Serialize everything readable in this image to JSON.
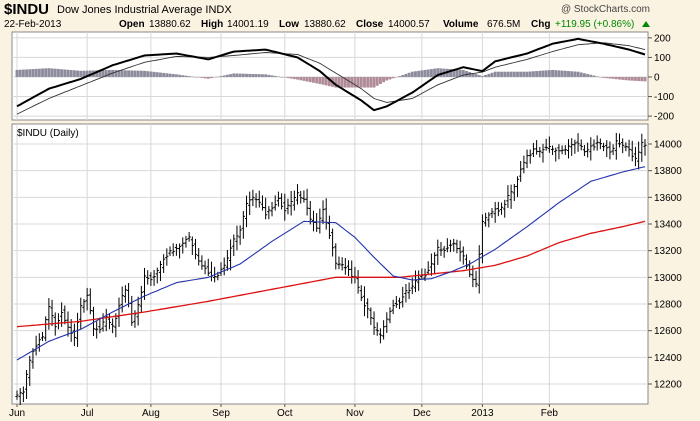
{
  "header": {
    "symbol": "$INDU",
    "name": "Dow Jones Industrial Average",
    "exchange": "INDX",
    "date": "22-Feb-2013",
    "watermark": "@ StockCharts.com",
    "open_label": "Open",
    "open": "13880.62",
    "high_label": "High",
    "high": "14001.19",
    "low_label": "Low",
    "low": "13880.62",
    "close_label": "Close",
    "close": "14000.57",
    "volume_label": "Volume",
    "volume": "676.5M",
    "chg_label": "Chg",
    "chg": "+119.95 (+0.86%)"
  },
  "colors": {
    "background": "#fbf3e2",
    "plot_bg": "#ffffff",
    "grid": "#d8d8d8",
    "ma_short": "#2233aa",
    "ma_long": "#dd1111",
    "hist_pos": "#8c8c9c",
    "hist_neg": "#b08c98",
    "up": "#008800"
  },
  "chart_data": [
    {
      "type": "line",
      "panel": "macd",
      "ylim": [
        -220,
        230
      ],
      "yticks": [
        -200,
        -100,
        0,
        100,
        200
      ],
      "xlabels": [
        "Jun",
        "Jul",
        "Aug",
        "Sep",
        "Oct",
        "Nov",
        "Dec",
        "2013",
        "Feb"
      ],
      "xlabel_index": [
        0,
        22,
        42,
        64,
        84,
        106,
        127,
        146,
        167
      ],
      "macd_knots": [
        [
          0,
          -150
        ],
        [
          10,
          -60
        ],
        [
          20,
          -10
        ],
        [
          30,
          60
        ],
        [
          40,
          110
        ],
        [
          50,
          120
        ],
        [
          60,
          90
        ],
        [
          68,
          130
        ],
        [
          78,
          140
        ],
        [
          88,
          100
        ],
        [
          95,
          30
        ],
        [
          100,
          -40
        ],
        [
          108,
          -120
        ],
        [
          112,
          -170
        ],
        [
          116,
          -150
        ],
        [
          124,
          -80
        ],
        [
          132,
          10
        ],
        [
          140,
          50
        ],
        [
          146,
          30
        ],
        [
          150,
          80
        ],
        [
          160,
          120
        ],
        [
          168,
          170
        ],
        [
          176,
          195
        ],
        [
          184,
          170
        ],
        [
          192,
          140
        ],
        [
          197,
          115
        ]
      ],
      "signal_knots": [
        [
          0,
          -190
        ],
        [
          10,
          -110
        ],
        [
          20,
          -45
        ],
        [
          30,
          20
        ],
        [
          40,
          75
        ],
        [
          50,
          105
        ],
        [
          60,
          100
        ],
        [
          68,
          110
        ],
        [
          78,
          125
        ],
        [
          88,
          115
        ],
        [
          95,
          70
        ],
        [
          100,
          20
        ],
        [
          108,
          -60
        ],
        [
          112,
          -110
        ],
        [
          116,
          -130
        ],
        [
          124,
          -110
        ],
        [
          132,
          -40
        ],
        [
          140,
          10
        ],
        [
          146,
          25
        ],
        [
          150,
          50
        ],
        [
          160,
          90
        ],
        [
          168,
          130
        ],
        [
          176,
          165
        ],
        [
          184,
          175
        ],
        [
          192,
          160
        ],
        [
          197,
          140
        ]
      ]
    },
    {
      "type": "ohlc",
      "panel": "price",
      "title": "$INDU (Daily)",
      "ylim": [
        12050,
        14150
      ],
      "yticks": [
        12200,
        12400,
        12600,
        12800,
        13000,
        13200,
        13400,
        13600,
        13800,
        14000
      ],
      "xlabels": [
        "Jun",
        "Jul",
        "Aug",
        "Sep",
        "Oct",
        "Nov",
        "Dec",
        "2013",
        "Feb"
      ],
      "xlabel_index": [
        0,
        22,
        42,
        64,
        84,
        106,
        127,
        146,
        167
      ],
      "close_knots": [
        [
          0,
          12120
        ],
        [
          2,
          12150
        ],
        [
          4,
          12380
        ],
        [
          6,
          12500
        ],
        [
          8,
          12560
        ],
        [
          10,
          12780
        ],
        [
          12,
          12640
        ],
        [
          14,
          12740
        ],
        [
          16,
          12620
        ],
        [
          18,
          12560
        ],
        [
          20,
          12780
        ],
        [
          22,
          12870
        ],
        [
          24,
          12620
        ],
        [
          26,
          12600
        ],
        [
          28,
          12700
        ],
        [
          30,
          12620
        ],
        [
          32,
          12780
        ],
        [
          34,
          12920
        ],
        [
          36,
          12660
        ],
        [
          38,
          12780
        ],
        [
          40,
          13000
        ],
        [
          42,
          12990
        ],
        [
          44,
          13040
        ],
        [
          46,
          13140
        ],
        [
          48,
          13200
        ],
        [
          50,
          13210
        ],
        [
          52,
          13270
        ],
        [
          54,
          13300
        ],
        [
          56,
          13160
        ],
        [
          58,
          13100
        ],
        [
          60,
          13020
        ],
        [
          62,
          13000
        ],
        [
          64,
          13050
        ],
        [
          66,
          13140
        ],
        [
          68,
          13290
        ],
        [
          70,
          13350
        ],
        [
          72,
          13560
        ],
        [
          74,
          13600
        ],
        [
          76,
          13550
        ],
        [
          78,
          13480
        ],
        [
          80,
          13530
        ],
        [
          82,
          13580
        ],
        [
          84,
          13500
        ],
        [
          86,
          13560
        ],
        [
          88,
          13620
        ],
        [
          90,
          13580
        ],
        [
          92,
          13430
        ],
        [
          94,
          13370
        ],
        [
          96,
          13520
        ],
        [
          98,
          13320
        ],
        [
          100,
          13100
        ],
        [
          102,
          13080
        ],
        [
          104,
          13050
        ],
        [
          106,
          12990
        ],
        [
          108,
          12840
        ],
        [
          110,
          12760
        ],
        [
          112,
          12620
        ],
        [
          114,
          12560
        ],
        [
          116,
          12700
        ],
        [
          118,
          12800
        ],
        [
          120,
          12820
        ],
        [
          122,
          12900
        ],
        [
          124,
          12930
        ],
        [
          126,
          12990
        ],
        [
          128,
          13020
        ],
        [
          130,
          13100
        ],
        [
          132,
          13210
        ],
        [
          134,
          13200
        ],
        [
          136,
          13250
        ],
        [
          138,
          13230
        ],
        [
          140,
          13150
        ],
        [
          142,
          13010
        ],
        [
          144,
          12940
        ],
        [
          146,
          13420
        ],
        [
          148,
          13480
        ],
        [
          150,
          13500
        ],
        [
          152,
          13520
        ],
        [
          154,
          13600
        ],
        [
          156,
          13680
        ],
        [
          158,
          13800
        ],
        [
          160,
          13900
        ],
        [
          162,
          13950
        ],
        [
          164,
          13950
        ],
        [
          166,
          13980
        ],
        [
          168,
          13960
        ],
        [
          170,
          13950
        ],
        [
          172,
          13960
        ],
        [
          174,
          13990
        ],
        [
          176,
          14000
        ],
        [
          178,
          13940
        ],
        [
          180,
          13980
        ],
        [
          182,
          14000
        ],
        [
          184,
          13990
        ],
        [
          186,
          13930
        ],
        [
          188,
          14010
        ],
        [
          190,
          13990
        ],
        [
          192,
          13960
        ],
        [
          194,
          13880
        ],
        [
          196,
          14000
        ],
        [
          197,
          14000
        ]
      ],
      "ma50_knots": [
        [
          0,
          12380
        ],
        [
          10,
          12520
        ],
        [
          20,
          12610
        ],
        [
          30,
          12740
        ],
        [
          40,
          12860
        ],
        [
          50,
          12960
        ],
        [
          60,
          13000
        ],
        [
          70,
          13100
        ],
        [
          80,
          13270
        ],
        [
          90,
          13420
        ],
        [
          100,
          13410
        ],
        [
          106,
          13300
        ],
        [
          112,
          13150
        ],
        [
          118,
          13010
        ],
        [
          124,
          12980
        ],
        [
          130,
          12990
        ],
        [
          136,
          13040
        ],
        [
          142,
          13100
        ],
        [
          150,
          13210
        ],
        [
          160,
          13380
        ],
        [
          170,
          13560
        ],
        [
          180,
          13720
        ],
        [
          190,
          13790
        ],
        [
          197,
          13830
        ]
      ],
      "ma200_knots": [
        [
          0,
          12630
        ],
        [
          20,
          12670
        ],
        [
          40,
          12740
        ],
        [
          60,
          12820
        ],
        [
          80,
          12910
        ],
        [
          100,
          13000
        ],
        [
          120,
          13000
        ],
        [
          140,
          13050
        ],
        [
          150,
          13090
        ],
        [
          160,
          13160
        ],
        [
          170,
          13260
        ],
        [
          180,
          13330
        ],
        [
          190,
          13380
        ],
        [
          197,
          13420
        ]
      ]
    }
  ]
}
